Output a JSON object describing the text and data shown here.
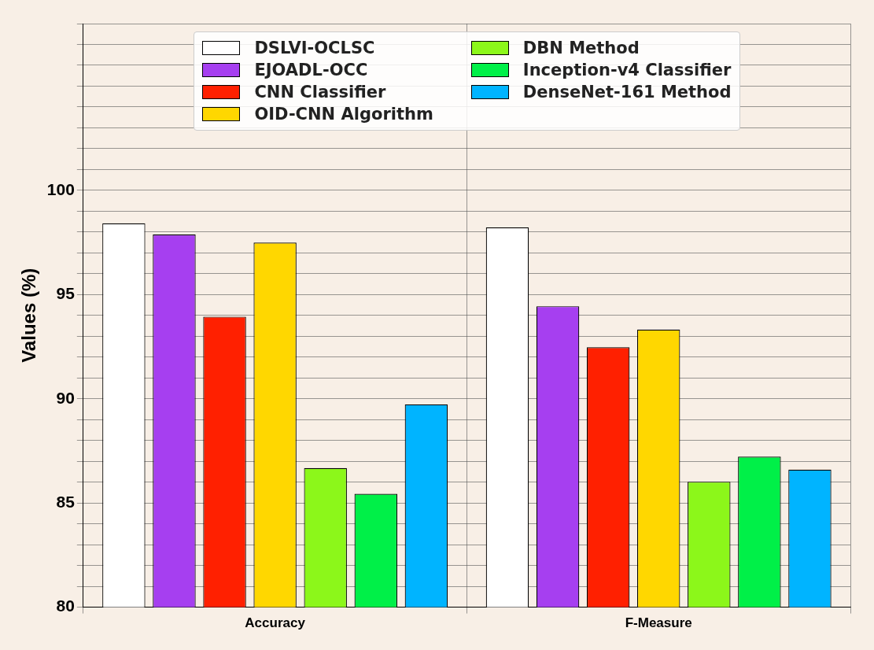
{
  "chart_data": {
    "type": "bar",
    "ylabel": "Values (%)",
    "categories": [
      "Accuracy",
      "F-Measure"
    ],
    "series": [
      {
        "name": "DSLVI-OCLSC",
        "color": "#ffffff",
        "values": [
          98.42,
          98.22
        ]
      },
      {
        "name": "EJOADL-OCC",
        "color": "#a63ff0",
        "values": [
          97.88,
          94.44
        ]
      },
      {
        "name": "CNN Classifier",
        "color": "#ff2000",
        "values": [
          93.94,
          92.47
        ]
      },
      {
        "name": "OID-CNN Algorithm",
        "color": "#ffd700",
        "values": [
          97.49,
          93.32
        ]
      },
      {
        "name": "DBN Method",
        "color": "#8cf71a",
        "values": [
          86.68,
          86.02
        ]
      },
      {
        "name": "Inception-v4 Classifier",
        "color": "#00f048",
        "values": [
          85.44,
          87.22
        ]
      },
      {
        "name": "DenseNet-161 Method",
        "color": "#00b4ff",
        "values": [
          89.73,
          86.6
        ]
      }
    ],
    "ylim": [
      80,
      108
    ],
    "yticks": [
      80,
      {
        "value": 81,
        "label": null
      },
      {
        "value": 82,
        "label": null
      },
      {
        "value": 83,
        "label": null
      },
      {
        "value": 84,
        "label": null
      },
      85,
      {
        "value": 86,
        "label": null
      },
      {
        "value": 87,
        "label": null
      },
      {
        "value": 88,
        "label": null
      },
      {
        "value": 89,
        "label": null
      },
      90,
      {
        "value": 91,
        "label": null
      },
      {
        "value": 92,
        "label": null
      },
      {
        "value": 93,
        "label": null
      },
      {
        "value": 94,
        "label": null
      },
      95,
      {
        "value": 96,
        "label": null
      },
      {
        "value": 97,
        "label": null
      },
      {
        "value": 98,
        "label": null
      },
      {
        "value": 99,
        "label": null
      },
      100,
      {
        "value": 101,
        "label": null
      },
      {
        "value": 102,
        "label": null
      },
      {
        "value": 103,
        "label": null
      },
      {
        "value": 104,
        "label": null
      },
      {
        "value": 105,
        "label": null
      },
      {
        "value": 106,
        "label": null
      },
      {
        "value": 107,
        "label": null
      },
      {
        "value": 108,
        "label": null
      }
    ],
    "grid": true,
    "legend": "top"
  }
}
